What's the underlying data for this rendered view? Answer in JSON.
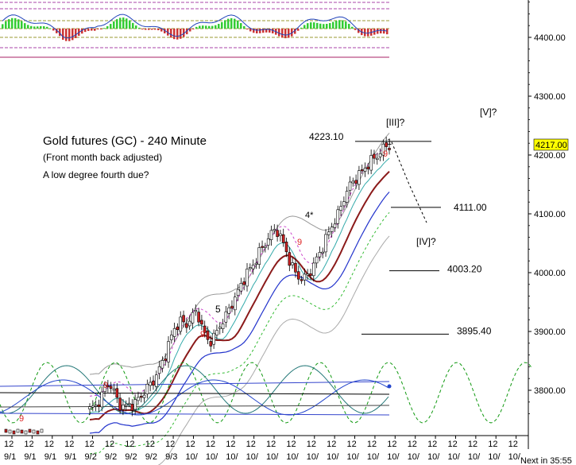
{
  "chart_data": {
    "type": "candlestick",
    "title": "Gold futures (GC) - 240 Minute",
    "subtitle": "(Front month back adjusted)",
    "note": "A low degree fourth due?",
    "y_ticks": [
      3800,
      3900,
      4000,
      4100,
      4200,
      4300,
      4400
    ],
    "y_tick_labels": [
      "3800.00",
      "3900.00",
      "4000.00",
      "4100.00",
      "4200.00",
      "4300.00",
      "4400.00"
    ],
    "ylim": [
      3752,
      4475
    ],
    "current_price": "4217.00",
    "levels": [
      {
        "value": 4223.1,
        "label": "4223.10"
      },
      {
        "value": 4111.0,
        "label": "4111.00"
      },
      {
        "value": 4003.2,
        "label": "4003.20"
      },
      {
        "value": 3895.4,
        "label": "3895.40"
      }
    ],
    "wave_labels": [
      {
        "text": "[III]?",
        "color": "#000000"
      },
      {
        "text": "[IV]?",
        "color": "#000000"
      },
      {
        "text": "[V]?",
        "color": "#000000"
      },
      {
        "text": "4*",
        "color": "#8b7d12"
      },
      {
        "text": "5",
        "color": "#8b7d12"
      },
      {
        "text": "1",
        "color": "#8b7d12"
      }
    ],
    "count_labels": [
      "9",
      "9",
      "9",
      "9",
      "9"
    ],
    "x_tick_labels": [
      "9/1",
      "9/1",
      "9/1",
      "9/1",
      "9/2",
      "9/2",
      "9/2",
      "9/2",
      "9/3",
      "10/",
      "10/",
      "10/",
      "10/",
      "10/",
      "10/",
      "10/",
      "10/",
      "10/",
      "10/",
      "10/",
      "10/",
      "10/",
      "10/",
      "10/",
      "10/",
      "10/"
    ],
    "x_tick_hour": "12",
    "status_text": "Next in 35:55",
    "close_path": [
      3768,
      3772,
      3788,
      3812,
      3805,
      3778,
      3772,
      3775,
      3778,
      3790,
      3803,
      3812,
      3830,
      3850,
      3880,
      3905,
      3918,
      3910,
      3925,
      3935,
      3902,
      3882,
      3890,
      3910,
      3925,
      3945,
      3962,
      3985,
      4002,
      4015,
      4035,
      4050,
      4065,
      4075,
      4055,
      4030,
      4005,
      3992,
      3990,
      4002,
      4020,
      4040,
      4062,
      4083,
      4100,
      4128,
      4148,
      4160,
      4170,
      4182,
      4192,
      4200,
      4212,
      4217
    ],
    "indicator_panel": {
      "type": "histogram",
      "colors": {
        "up": "#33cc33",
        "down": "#cc3333"
      }
    },
    "colors": {
      "bull": "#ffffff",
      "bear": "#cc2222",
      "ma": "#8b1a1a",
      "band": "#2233cc",
      "price_tag": "#ffff00"
    }
  }
}
